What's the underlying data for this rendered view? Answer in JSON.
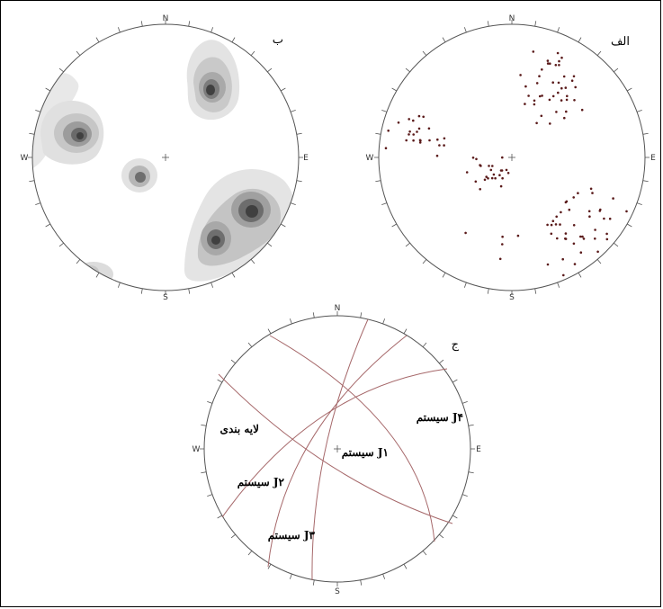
{
  "panels": {
    "a": {
      "label": "الف",
      "directions": {
        "n": "N",
        "s": "S",
        "e": "E",
        "w": "W"
      },
      "pole_count": 142
    },
    "b": {
      "label": "ب",
      "directions": {
        "n": "N",
        "s": "S",
        "e": "E",
        "w": "W"
      },
      "contour_fill": "#404040"
    },
    "c": {
      "label": "ج",
      "directions": {
        "n": "N",
        "s": "S",
        "e": "E",
        "w": "W"
      },
      "planes": {
        "bedding": "لایه بندی",
        "j1": "سیستم J۱",
        "j2": "سیستم J۲",
        "j3": "سیستم J۳",
        "j4": "سیستم J۴"
      },
      "plane_color": "#a6686a"
    }
  }
}
